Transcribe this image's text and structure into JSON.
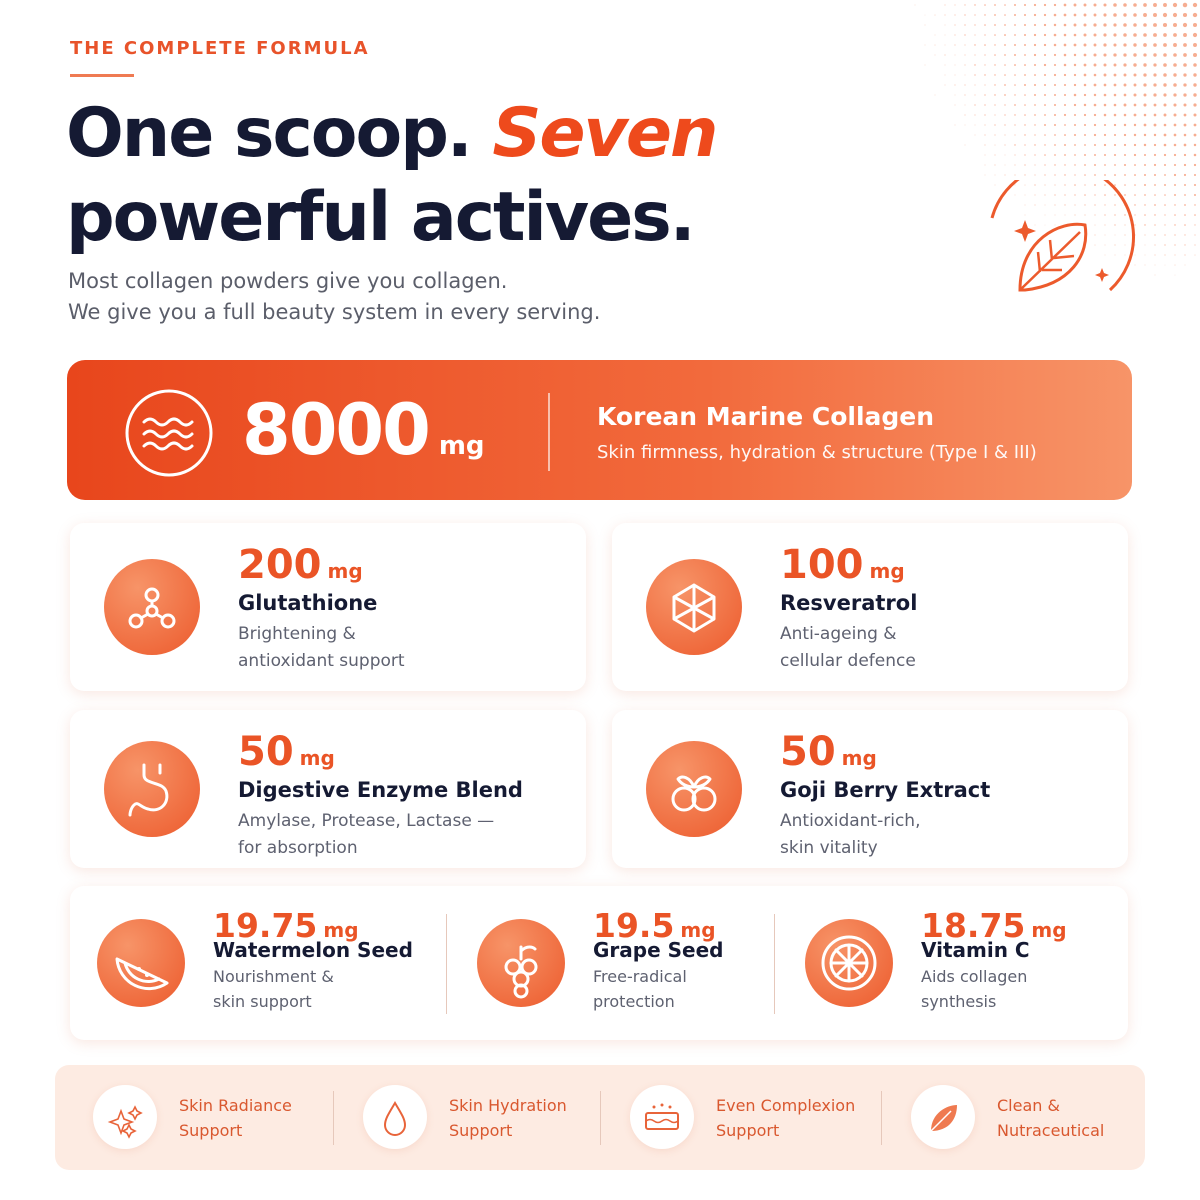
{
  "eyebrow": "THE COMPLETE FORMULA",
  "headline": {
    "part1": "One scoop.",
    "accent": "Seven",
    "part2": "powerful actives."
  },
  "intro": [
    "Most collagen powders give you collagen.",
    "We give you a full beauty system in every serving."
  ],
  "hero": {
    "amount": 8000,
    "unit": "mg",
    "name": "Korean Marine Collagen",
    "description": "Skin firmness, hydration & structure (Type I & III)"
  },
  "actives": [
    {
      "amount": 200,
      "unit": "mg",
      "name": "Glutathione",
      "description": [
        "Brightening &",
        "antioxidant support"
      ]
    },
    {
      "amount": 100,
      "unit": "mg",
      "name": "Resveratrol",
      "description": [
        "Anti-ageing &",
        "cellular defence"
      ]
    },
    {
      "amount": 50,
      "unit": "mg",
      "name": "Digestive Enzyme Blend",
      "description": [
        "Amylase, Protease, Lactase —",
        "for absorption"
      ]
    },
    {
      "amount": 50,
      "unit": "mg",
      "name": "Goji Berry Extract",
      "description": [
        "Antioxidant-rich,",
        "skin vitality"
      ]
    }
  ],
  "minor_actives": [
    {
      "amount": 19.75,
      "unit": "mg",
      "name": "Watermelon Seed",
      "description": [
        "Nourishment &",
        "skin support"
      ]
    },
    {
      "amount": 19.5,
      "unit": "mg",
      "name": "Grape Seed",
      "description": [
        "Free-radical",
        "protection"
      ]
    },
    {
      "amount": 18.75,
      "unit": "mg",
      "name": "Vitamin C",
      "description": [
        "Aids collagen",
        "synthesis"
      ]
    }
  ],
  "benefits": [
    [
      "Skin Radiance",
      "Support"
    ],
    [
      "Skin Hydration",
      "Support"
    ],
    [
      "Even Complexion",
      "Support"
    ],
    [
      "Clean &",
      "Nutraceutical"
    ]
  ]
}
